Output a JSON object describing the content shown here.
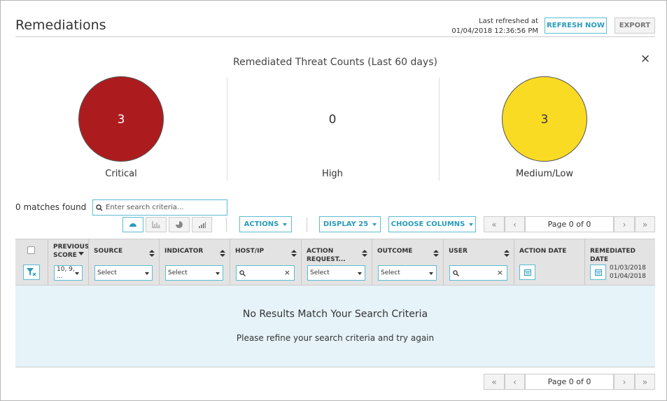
{
  "header": {
    "title": "Remediations",
    "refreshed_label": "Last refreshed at",
    "refreshed_time": "01/04/2018 12:36:56 PM",
    "refresh_button": "REFRESH NOW",
    "export_button": "EXPORT"
  },
  "summary": {
    "title": "Remediated Threat Counts (Last 60 days)",
    "close": "×",
    "counts": [
      {
        "label": "Critical",
        "value": 3,
        "color": "#ac1c1f"
      },
      {
        "label": "High",
        "value": 0
      },
      {
        "label": "Medium/Low",
        "value": 3,
        "color": "#fadb24"
      }
    ]
  },
  "toolbar": {
    "matches": "0 matches found",
    "search_placeholder": "Enter search criteria...",
    "actions": "ACTIONS",
    "display": "DISPLAY 25",
    "choose_columns": "CHOOSE COLUMNS"
  },
  "pager": {
    "first": "«",
    "prev": "‹",
    "page": "Page 0 of 0",
    "next": "›",
    "last": "»"
  },
  "table": {
    "columns": [
      {
        "label": "PREVIOUS SCORE",
        "sort": "desc",
        "filter": {
          "kind": "select",
          "text": "10, 9, ..."
        }
      },
      {
        "label": "SOURCE",
        "sort": "both",
        "filter": {
          "kind": "select",
          "text": "Select"
        }
      },
      {
        "label": "INDICATOR",
        "sort": "both",
        "filter": {
          "kind": "select",
          "text": "Select"
        }
      },
      {
        "label": "HOST/IP",
        "sort": "both",
        "filter": {
          "kind": "search",
          "clear": "×"
        }
      },
      {
        "label": "ACTION REQUEST...",
        "sort": "both",
        "filter": {
          "kind": "select",
          "text": "Select"
        }
      },
      {
        "label": "OUTCOME",
        "sort": "both",
        "filter": {
          "kind": "select",
          "text": "Select"
        }
      },
      {
        "label": "USER",
        "sort": "both",
        "filter": {
          "kind": "search",
          "clear": "×"
        }
      },
      {
        "label": "ACTION DATE",
        "filter": {
          "kind": "date"
        }
      },
      {
        "label": "REMEDIATED DATE",
        "filter": {
          "kind": "date",
          "from": "01/03/2018",
          "to": "01/04/2018"
        }
      }
    ],
    "empty_title": "No Results Match Your Search Criteria",
    "empty_message": "Please refine your search criteria and try again"
  },
  "footer_pager": {
    "first": "«",
    "prev": "‹",
    "page": "Page 0 of 0",
    "next": "›",
    "last": "»"
  }
}
